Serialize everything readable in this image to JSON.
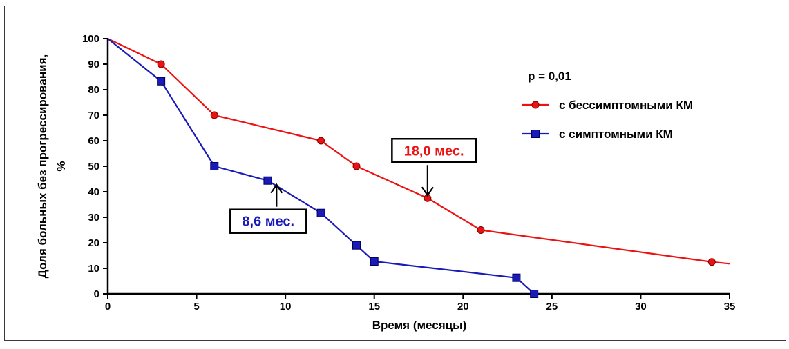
{
  "chart_data": {
    "type": "line",
    "xlabel": "Время (месяцы)",
    "ylabel_line1": "Доля больных без прогрессирования,",
    "ylabel_line2": "%",
    "xlim": [
      0,
      35
    ],
    "ylim": [
      0,
      100
    ],
    "x_ticks": [
      0,
      5,
      10,
      15,
      20,
      25,
      30,
      35
    ],
    "y_ticks": [
      0,
      10,
      20,
      30,
      40,
      50,
      60,
      70,
      80,
      90,
      100
    ],
    "grid": false,
    "legend_position": "top-right",
    "p_value_text": "p = 0,01",
    "series": [
      {
        "name": "с бессимптомными КМ",
        "color": "#ee1111",
        "marker": "circle",
        "x": [
          0,
          3,
          6,
          12,
          14,
          18,
          21,
          34,
          35
        ],
        "y": [
          100,
          90,
          70,
          60,
          50,
          37.5,
          25,
          12.5,
          11.8
        ],
        "marker_mask": [
          false,
          true,
          true,
          true,
          true,
          true,
          true,
          true,
          false
        ]
      },
      {
        "name": "с симптомными КМ",
        "color": "#1a1ab8",
        "marker": "square",
        "x": [
          0,
          3,
          6,
          9,
          12,
          14,
          15,
          23,
          24
        ],
        "y": [
          100,
          83.3,
          50,
          44.4,
          31.7,
          19,
          12.7,
          6.3,
          0
        ],
        "marker_mask": [
          false,
          true,
          true,
          true,
          true,
          true,
          true,
          true,
          true
        ]
      }
    ],
    "annotations": [
      {
        "text": "18,0 мес.",
        "color": "#ee1111",
        "x": 18,
        "y": 37.5,
        "arrow": "down"
      },
      {
        "text": "8,6 мес.",
        "color": "#1a1ab8",
        "x": 9.5,
        "y": 44.4,
        "arrow": "up"
      }
    ]
  }
}
